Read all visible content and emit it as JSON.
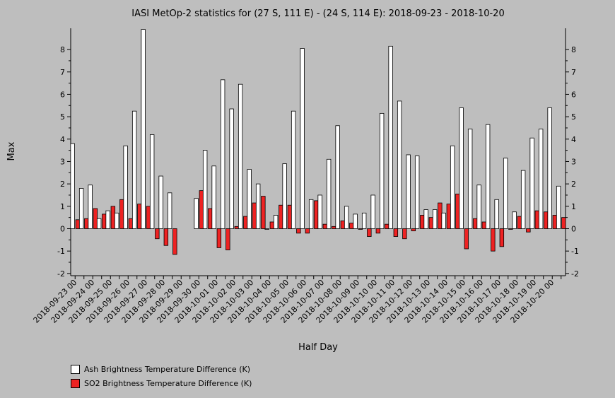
{
  "chart_data": {
    "type": "bar",
    "title": "IASI MetOp-2 statistics for (27 S, 111 E) - (24 S, 114 E): 2018-09-23 - 2018-10-20",
    "xlabel": "Half Day",
    "ylabel": "Max",
    "ylim": [
      -2.1,
      8.95
    ],
    "yticks": [
      -2,
      -1,
      0,
      1,
      2,
      3,
      4,
      5,
      6,
      7,
      8
    ],
    "categories": [
      "2018-09-23 00",
      "2018-09-23 12",
      "2018-09-24 00",
      "2018-09-24 12",
      "2018-09-25 00",
      "2018-09-25 12",
      "2018-09-26 00",
      "2018-09-26 12",
      "2018-09-27 00",
      "2018-09-27 12",
      "2018-09-28 00",
      "2018-09-28 12",
      "2018-09-29 00",
      "2018-09-29 12",
      "2018-09-30 00",
      "2018-09-30 12",
      "2018-10-01 00",
      "2018-10-01 12",
      "2018-10-02 00",
      "2018-10-02 12",
      "2018-10-03 00",
      "2018-10-03 12",
      "2018-10-04 00",
      "2018-10-04 12",
      "2018-10-05 00",
      "2018-10-05 12",
      "2018-10-06 00",
      "2018-10-06 12",
      "2018-10-07 00",
      "2018-10-07 12",
      "2018-10-08 00",
      "2018-10-08 12",
      "2018-10-09 00",
      "2018-10-09 12",
      "2018-10-10 00",
      "2018-10-10 12",
      "2018-10-11 00",
      "2018-10-11 12",
      "2018-10-12 00",
      "2018-10-12 12",
      "2018-10-13 00",
      "2018-10-13 12",
      "2018-10-14 00",
      "2018-10-14 12",
      "2018-10-15 00",
      "2018-10-15 12",
      "2018-10-16 00",
      "2018-10-16 12",
      "2018-10-17 00",
      "2018-10-17 12",
      "2018-10-18 00",
      "2018-10-18 12",
      "2018-10-19 00",
      "2018-10-19 12",
      "2018-10-20 00",
      "2018-10-20 12"
    ],
    "tick_labels": [
      "2018-09-23 00",
      "2018-09-24 00",
      "2018-09-25 00",
      "2018-09-26 00",
      "2018-09-27 00",
      "2018-09-28 00",
      "2018-09-29 00",
      "2018-09-30 00",
      "2018-10-01 00",
      "2018-10-02 00",
      "2018-10-03 00",
      "2018-10-04 00",
      "2018-10-05 00",
      "2018-10-06 00",
      "2018-10-07 00",
      "2018-10-08 00",
      "2018-10-09 00",
      "2018-10-10 00",
      "2018-10-11 00",
      "2018-10-12 00",
      "2018-10-13 00",
      "2018-10-14 00",
      "2018-10-15 00",
      "2018-10-16 00",
      "2018-10-17 00",
      "2018-10-18 00",
      "2018-10-19 00",
      "2018-10-20 00"
    ],
    "series": [
      {
        "name": "Ash Brightness Temperature Difference (K)",
        "color": "#ffffff",
        "values": [
          3.8,
          1.8,
          1.95,
          0.45,
          0.8,
          0.7,
          3.7,
          5.25,
          8.9,
          4.2,
          2.35,
          1.6,
          null,
          null,
          1.35,
          3.5,
          2.8,
          6.65,
          5.35,
          6.45,
          2.65,
          2.0,
          0.0,
          0.6,
          2.9,
          5.25,
          8.05,
          1.3,
          1.5,
          3.1,
          4.6,
          1.0,
          0.65,
          0.7,
          1.5,
          5.15,
          8.15,
          5.7,
          3.3,
          3.25,
          0.85,
          0.85,
          0.7,
          3.7,
          5.4,
          4.45,
          1.95,
          4.65,
          1.3,
          3.15,
          0.75,
          2.6,
          4.05,
          4.45,
          5.4,
          1.9
        ]
      },
      {
        "name": "SO2 Brightness Temperature Difference (K)",
        "color": "#ee2222",
        "values": [
          0.4,
          0.45,
          0.9,
          0.65,
          1.0,
          1.3,
          0.45,
          1.1,
          1.0,
          -0.45,
          -0.75,
          -1.15,
          null,
          null,
          1.7,
          0.9,
          -0.85,
          -0.95,
          0.1,
          0.55,
          1.15,
          1.45,
          0.3,
          1.05,
          1.05,
          -0.2,
          -0.2,
          1.25,
          0.2,
          0.1,
          0.35,
          0.25,
          0.0,
          -0.35,
          -0.2,
          0.2,
          -0.35,
          -0.45,
          -0.1,
          0.6,
          0.5,
          1.15,
          1.1,
          1.55,
          -0.9,
          0.45,
          0.3,
          -1.0,
          -0.8,
          0.0,
          0.55,
          -0.15,
          0.8,
          0.75,
          0.6,
          0.5
        ]
      }
    ],
    "grid": false,
    "legend_position": "bottom-left"
  }
}
